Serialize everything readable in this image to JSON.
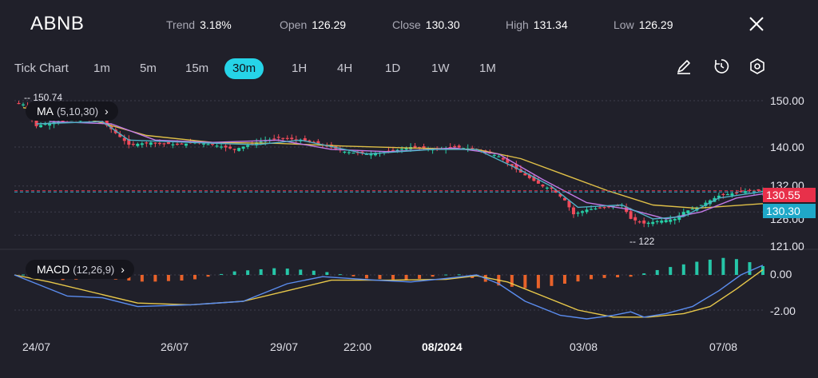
{
  "header": {
    "symbol": "ABNB",
    "stats": [
      {
        "label": "Trend",
        "value": "3.18%"
      },
      {
        "label": "Open",
        "value": "126.29"
      },
      {
        "label": "Close",
        "value": "130.30"
      },
      {
        "label": "High",
        "value": "131.34"
      },
      {
        "label": "Low",
        "value": "126.29"
      }
    ]
  },
  "toolbar": {
    "timeframes": [
      "Tick Chart",
      "1m",
      "5m",
      "15m",
      "30m",
      "1H",
      "4H",
      "1D",
      "1W",
      "1M"
    ],
    "active_timeframe": "30m",
    "tools": [
      "draw-pen-icon",
      "clock-icon",
      "settings-hexagon-icon"
    ]
  },
  "indicators": {
    "ma": {
      "name": "MA",
      "params": "(5,10,30)"
    },
    "macd": {
      "name": "MACD",
      "params": "(12,26,9)"
    }
  },
  "annotations": {
    "max_label": "-- 150.74",
    "min_label": "-- 122"
  },
  "price_tags": {
    "last": "130.55",
    "close": "130.30"
  },
  "colors": {
    "background": "#20202a",
    "up": "#26d0a6",
    "down": "#f04a5a",
    "accent": "#26d4e8",
    "ma5": "#4fb0c6",
    "ma10": "#c27ae6",
    "ma30": "#e0c048",
    "macd_line": "#5b8def",
    "signal_line": "#e8c84a",
    "hist_pos": "#26c6a8",
    "hist_neg": "#e8622a",
    "tag_last": "#e8304a",
    "tag_close": "#1fa8c8"
  },
  "chart_data": [
    {
      "type": "candlestick",
      "title": "ABNB",
      "x_tick_labels": [
        "24/07",
        "26/07",
        "29/07",
        "22:00",
        "08/2024",
        "03/08",
        "07/08"
      ],
      "y_tick_labels": [
        "150.00",
        "140.00",
        "132.00",
        "126.00",
        "121.00"
      ],
      "ylim": [
        118,
        153
      ],
      "grid": true,
      "series": [
        {
          "name": "MA5",
          "color": "ma5"
        },
        {
          "name": "MA10",
          "color": "ma10"
        },
        {
          "name": "MA30",
          "color": "ma30"
        }
      ],
      "close_path": [
        [
          0,
          149.5
        ],
        [
          2,
          149.2
        ],
        [
          5,
          144.5
        ],
        [
          9,
          145.5
        ],
        [
          15,
          146
        ],
        [
          20,
          145.5
        ],
        [
          26,
          140.5
        ],
        [
          31,
          141
        ],
        [
          37,
          140.5
        ],
        [
          41,
          141
        ],
        [
          45,
          140.5
        ],
        [
          50,
          139.5
        ],
        [
          55,
          141
        ],
        [
          60,
          142
        ],
        [
          65,
          141.5
        ],
        [
          70,
          140.5
        ],
        [
          75,
          139
        ],
        [
          80,
          138.5
        ],
        [
          85,
          139
        ],
        [
          90,
          140
        ],
        [
          95,
          139.5
        ],
        [
          100,
          140
        ],
        [
          105,
          139.5
        ],
        [
          110,
          138
        ],
        [
          115,
          134.5
        ],
        [
          120,
          131.5
        ],
        [
          122,
          131
        ],
        [
          125,
          128.5
        ],
        [
          127,
          125.5
        ],
        [
          130,
          126.5
        ],
        [
          134,
          127
        ],
        [
          138,
          127.5
        ],
        [
          140,
          124.5
        ],
        [
          143,
          123.5
        ],
        [
          146,
          124
        ],
        [
          150,
          124.5
        ],
        [
          152,
          126
        ],
        [
          155,
          127
        ],
        [
          160,
          129.5
        ],
        [
          166,
          130.5
        ],
        [
          170,
          130.55
        ]
      ],
      "ma5_path": [
        [
          5,
          145
        ],
        [
          20,
          145.5
        ],
        [
          26,
          141.5
        ],
        [
          40,
          141
        ],
        [
          55,
          140.5
        ],
        [
          65,
          141.5
        ],
        [
          80,
          138.5
        ],
        [
          95,
          139.5
        ],
        [
          105,
          139.5
        ],
        [
          115,
          135
        ],
        [
          122,
          131.5
        ],
        [
          128,
          127
        ],
        [
          138,
          127.5
        ],
        [
          145,
          124.5
        ],
        [
          152,
          125
        ],
        [
          160,
          129
        ],
        [
          170,
          130.4
        ]
      ],
      "ma10_path": [
        [
          8,
          145.5
        ],
        [
          22,
          145
        ],
        [
          32,
          141.5
        ],
        [
          45,
          141
        ],
        [
          60,
          141.5
        ],
        [
          72,
          139.5
        ],
        [
          85,
          139
        ],
        [
          100,
          139.8
        ],
        [
          110,
          138.5
        ],
        [
          120,
          133
        ],
        [
          130,
          128
        ],
        [
          140,
          126.5
        ],
        [
          148,
          124.5
        ],
        [
          156,
          126
        ],
        [
          164,
          129
        ],
        [
          170,
          129.9
        ]
      ],
      "ma30_path": [
        [
          2,
          148.5
        ],
        [
          15,
          146.5
        ],
        [
          30,
          142.5
        ],
        [
          45,
          141
        ],
        [
          60,
          140.8
        ],
        [
          75,
          140.2
        ],
        [
          90,
          139.8
        ],
        [
          105,
          139.5
        ],
        [
          115,
          137.5
        ],
        [
          125,
          134
        ],
        [
          135,
          130.5
        ],
        [
          145,
          127.5
        ],
        [
          155,
          126.8
        ],
        [
          170,
          127.8
        ]
      ]
    },
    {
      "type": "bar",
      "title": "MACD (12,26,9)",
      "y_tick_labels": [
        "0.00",
        "-2.00"
      ],
      "ylim": [
        -3,
        1
      ],
      "series": [
        {
          "name": "MACD",
          "color": "macd_line"
        },
        {
          "name": "Signal",
          "color": "signal_line"
        },
        {
          "name": "Histogram"
        }
      ],
      "macd_path": [
        [
          0,
          0
        ],
        [
          5,
          -0.5
        ],
        [
          12,
          -1.2
        ],
        [
          20,
          -1.3
        ],
        [
          28,
          -1.8
        ],
        [
          40,
          -1.7
        ],
        [
          52,
          -1.5
        ],
        [
          62,
          -0.5
        ],
        [
          70,
          -0.1
        ],
        [
          82,
          -0.3
        ],
        [
          90,
          -0.4
        ],
        [
          98,
          -0.2
        ],
        [
          105,
          0
        ],
        [
          110,
          -0.5
        ],
        [
          116,
          -1.5
        ],
        [
          124,
          -2.3
        ],
        [
          130,
          -2.5
        ],
        [
          136,
          -2.3
        ],
        [
          140,
          -2.1
        ],
        [
          143,
          -2.4
        ],
        [
          148,
          -2.2
        ],
        [
          154,
          -1.8
        ],
        [
          160,
          -0.9
        ],
        [
          165,
          0
        ],
        [
          170,
          0.55
        ]
      ],
      "signal_path": [
        [
          0,
          0
        ],
        [
          8,
          -0.4
        ],
        [
          18,
          -1.0
        ],
        [
          28,
          -1.6
        ],
        [
          40,
          -1.7
        ],
        [
          52,
          -1.5
        ],
        [
          62,
          -0.9
        ],
        [
          72,
          -0.3
        ],
        [
          85,
          -0.3
        ],
        [
          98,
          -0.25
        ],
        [
          105,
          -0.05
        ],
        [
          112,
          -0.4
        ],
        [
          120,
          -1.2
        ],
        [
          128,
          -2.0
        ],
        [
          136,
          -2.4
        ],
        [
          144,
          -2.4
        ],
        [
          152,
          -2.2
        ],
        [
          158,
          -1.8
        ],
        [
          164,
          -0.8
        ],
        [
          170,
          0.3
        ]
      ],
      "histogram": [
        [
          0,
          0.1
        ],
        [
          10,
          -0.3
        ],
        [
          20,
          -0.2
        ],
        [
          30,
          -0.4
        ],
        [
          40,
          -0.3
        ],
        [
          50,
          0.2
        ],
        [
          60,
          0.4
        ],
        [
          70,
          0.2
        ],
        [
          80,
          -0.2
        ],
        [
          90,
          -0.3
        ],
        [
          100,
          0.1
        ],
        [
          110,
          -0.6
        ],
        [
          118,
          -0.8
        ],
        [
          125,
          -0.5
        ],
        [
          132,
          -0.2
        ],
        [
          140,
          -0.1
        ],
        [
          148,
          0.4
        ],
        [
          156,
          0.8
        ],
        [
          162,
          1.0
        ],
        [
          166,
          0.8
        ],
        [
          170,
          0.5
        ]
      ]
    }
  ]
}
